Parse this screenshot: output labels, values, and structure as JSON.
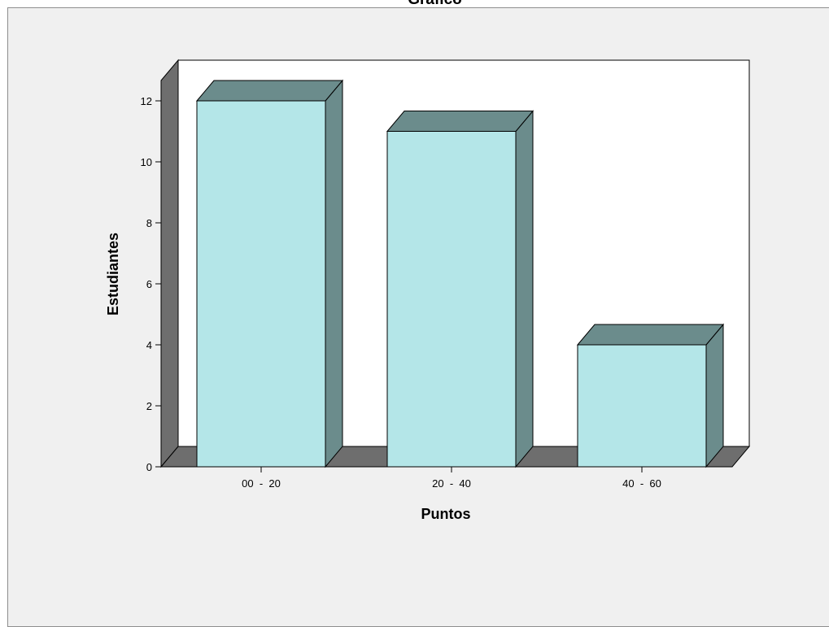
{
  "chart_data": {
    "type": "bar",
    "title": "Gráfico",
    "categories": [
      "00  -  20",
      "20  -  40",
      "40  -  60"
    ],
    "values": [
      12,
      11,
      4
    ],
    "xlabel": "Puntos",
    "ylabel": "Estudiantes",
    "ylim": [
      0,
      12
    ],
    "yticks": [
      0,
      2,
      4,
      6,
      8,
      10,
      12
    ],
    "grid": false,
    "legend": "none",
    "bar_front_color": "#b4e6e8",
    "bar_side_color": "#6b8c8c",
    "wall_color": "#6e6e6e",
    "plot_background": "#ffffff",
    "frame_background": "#f0f0f0"
  }
}
